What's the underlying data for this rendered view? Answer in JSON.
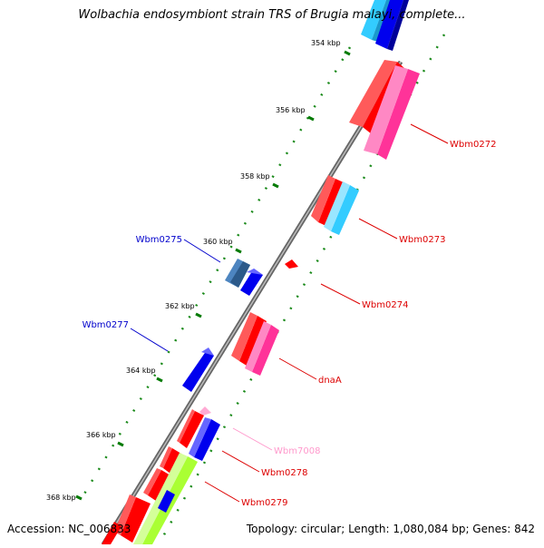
{
  "title": "Wolbachia endosymbiont strain TRS of Brugia malayi, complete...",
  "footer": {
    "accession": "Accession: NC_006833",
    "summary": "Topology: circular; Length: 1,080,084 bp; Genes: 842"
  },
  "colors": {
    "red": "#ff0000",
    "pink": "#ff3399",
    "blue": "#0000ee",
    "cyan": "#33ccff",
    "steel": "#4d85c0",
    "lime": "#aaff33",
    "tick_green": "#007a00",
    "label_red": "#dd0000",
    "label_blue": "#0000cc",
    "label_pink": "#ff99cc"
  },
  "ticks": [
    {
      "label": "354 kbp"
    },
    {
      "label": "356 kbp"
    },
    {
      "label": "358 kbp"
    },
    {
      "label": "360 kbp"
    },
    {
      "label": "362 kbp"
    },
    {
      "label": "364 kbp"
    },
    {
      "label": "366 kbp"
    },
    {
      "label": "368 kbp"
    }
  ],
  "gene_labels": [
    {
      "name": "Wbm0272",
      "color": "label_red"
    },
    {
      "name": "Wbm0273",
      "color": "label_red"
    },
    {
      "name": "Wbm0274",
      "color": "label_red"
    },
    {
      "name": "dnaA",
      "color": "label_red"
    },
    {
      "name": "Wbm7008",
      "color": "label_pink"
    },
    {
      "name": "Wbm0278",
      "color": "label_red"
    },
    {
      "name": "Wbm0279",
      "color": "label_red"
    },
    {
      "name": "Wbm0275",
      "color": "label_blue"
    },
    {
      "name": "Wbm0277",
      "color": "label_blue"
    }
  ]
}
